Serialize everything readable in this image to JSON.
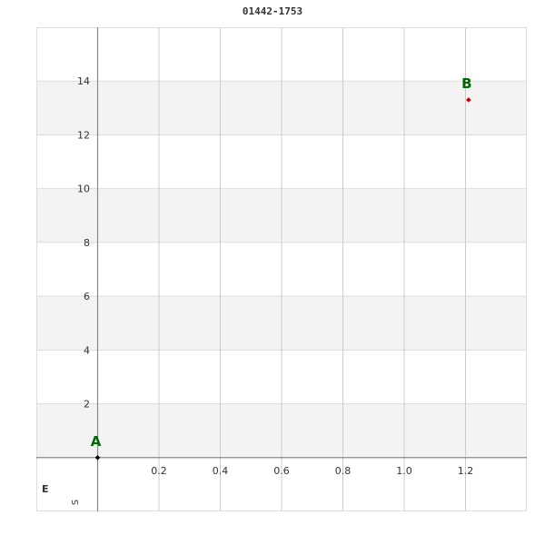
{
  "chart_data": {
    "type": "scatter",
    "title": "01442-1753",
    "xlabel": "E",
    "ylabel": "S",
    "xlim": [
      -0.2,
      1.4
    ],
    "ylim": [
      -2,
      16
    ],
    "x_ticks": [
      "0.2",
      "0.4",
      "0.6",
      "0.8",
      "1.0",
      "1.2"
    ],
    "x_tick_values": [
      0.2,
      0.4,
      0.6,
      0.8,
      1.0,
      1.2
    ],
    "y_ticks": [
      "2",
      "4",
      "6",
      "8",
      "10",
      "12",
      "14"
    ],
    "y_tick_values": [
      2,
      4,
      6,
      8,
      10,
      12,
      14
    ],
    "grid": true,
    "points": [
      {
        "label": "A",
        "x": 0,
        "y": 0,
        "color": "#000000"
      },
      {
        "label": "B",
        "x": 1.21,
        "y": 13.3,
        "color": "#cc0000"
      }
    ],
    "label_color": "#006600",
    "band_color": "#f3f3f3"
  }
}
